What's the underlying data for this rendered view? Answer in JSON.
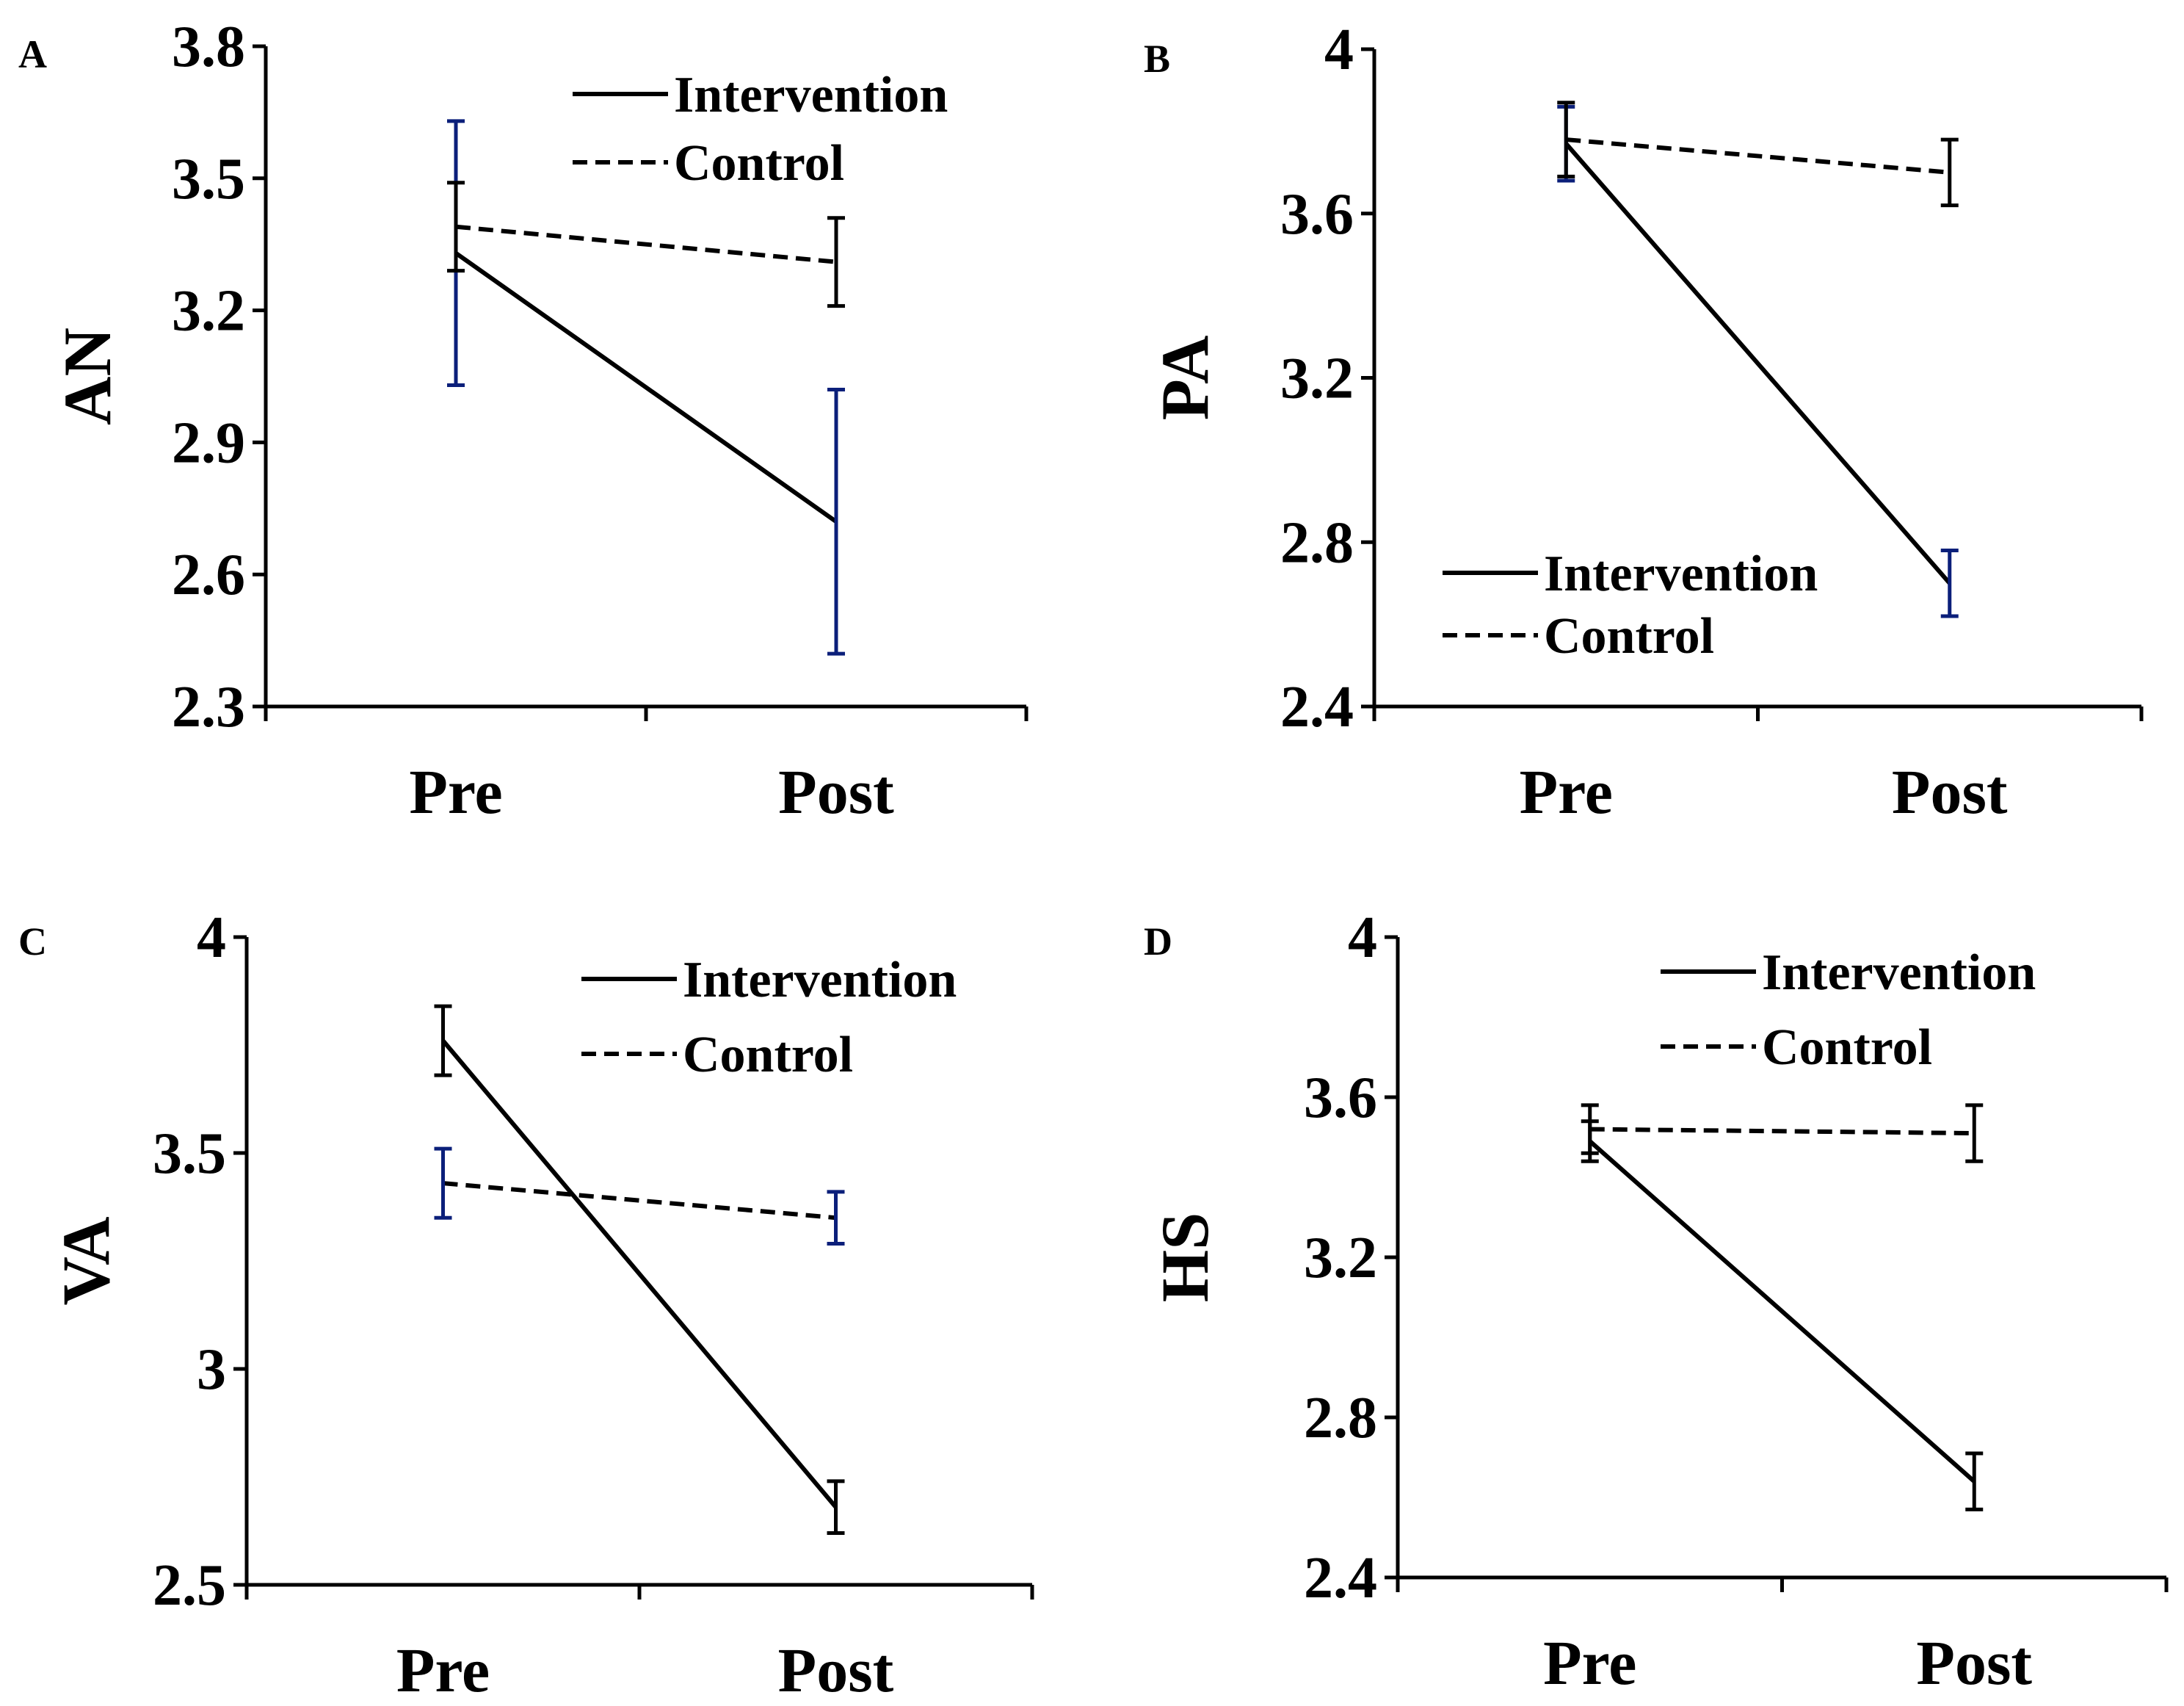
{
  "colors": {
    "axis": "#000000",
    "line": "#000000",
    "error_intervention_dark": "#000000",
    "error_blue": "#0b1f7a"
  },
  "chart_data": [
    {
      "type": "line",
      "panel": "A",
      "ylabel": "AN",
      "categories": [
        "Pre",
        "Post"
      ],
      "ylim": [
        2.3,
        3.8
      ],
      "yticks": [
        "3.8",
        "3.5",
        "3.2",
        "2.9",
        "2.6",
        "2.3"
      ],
      "legend": {
        "placement": "top-right",
        "entries": [
          "Intervention",
          "Control"
        ]
      },
      "series": [
        {
          "name": "Intervention",
          "style": "solid",
          "values": [
            3.33,
            2.72
          ],
          "errors": [
            0.3,
            0.3
          ],
          "error_color": "blue"
        },
        {
          "name": "Control",
          "style": "dashed",
          "values": [
            3.39,
            3.31
          ],
          "errors": [
            0.1,
            0.1
          ],
          "error_color": "black"
        }
      ]
    },
    {
      "type": "line",
      "panel": "B",
      "ylabel": "PA",
      "categories": [
        "Pre",
        "Post"
      ],
      "ylim": [
        2.4,
        4.0
      ],
      "yticks": [
        "4",
        "3.6",
        "3.2",
        "2.8",
        "2.4"
      ],
      "legend": {
        "placement": "bottom-left",
        "entries": [
          "Intervention",
          "Control"
        ]
      },
      "series": [
        {
          "name": "Intervention",
          "style": "solid",
          "values": [
            3.77,
            2.7
          ],
          "errors": [
            0.09,
            0.08
          ],
          "error_color": "blue"
        },
        {
          "name": "Control",
          "style": "dashed",
          "values": [
            3.78,
            3.7
          ],
          "errors": [
            0.09,
            0.08
          ],
          "error_color": "black"
        }
      ]
    },
    {
      "type": "line",
      "panel": "C",
      "ylabel": "VA",
      "categories": [
        "Pre",
        "Post"
      ],
      "ylim": [
        2.5,
        4.0
      ],
      "yticks": [
        "4",
        "3.5",
        "3",
        "2.5"
      ],
      "legend": {
        "placement": "top-right",
        "entries": [
          "Intervention",
          "Control"
        ]
      },
      "series": [
        {
          "name": "Intervention",
          "style": "solid",
          "values": [
            3.76,
            2.68
          ],
          "errors": [
            0.08,
            0.06
          ],
          "error_color": "black"
        },
        {
          "name": "Control",
          "style": "dashed",
          "values": [
            3.43,
            3.35
          ],
          "errors": [
            0.08,
            0.06
          ],
          "error_color": "blue"
        }
      ]
    },
    {
      "type": "line",
      "panel": "D",
      "ylabel": "HS",
      "categories": [
        "Pre",
        "Post"
      ],
      "ylim": [
        2.4,
        4.0
      ],
      "yticks": [
        "4",
        "3.6",
        "3.2",
        "2.8",
        "2.4"
      ],
      "legend": {
        "placement": "top-right",
        "entries": [
          "Intervention",
          "Control"
        ]
      },
      "series": [
        {
          "name": "Intervention",
          "style": "solid",
          "values": [
            3.49,
            2.64
          ],
          "errors": [
            0.05,
            0.07
          ],
          "error_color": "black"
        },
        {
          "name": "Control",
          "style": "dashed",
          "values": [
            3.52,
            3.51
          ],
          "errors": [
            0.06,
            0.07
          ],
          "error_color": "black"
        }
      ]
    }
  ]
}
